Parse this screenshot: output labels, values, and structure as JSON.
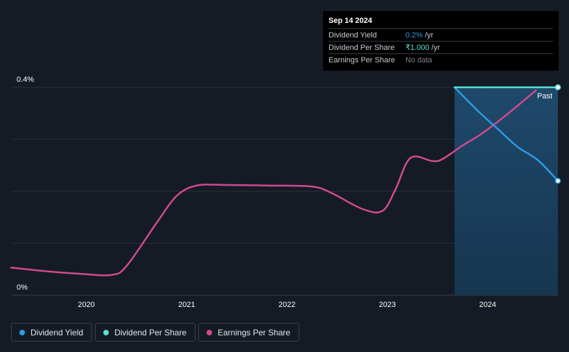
{
  "tooltip": {
    "date": "Sep 14 2024",
    "rows": [
      {
        "label": "Dividend Yield",
        "value": "0.2%",
        "suffix": "/yr",
        "color": "#2e9be6"
      },
      {
        "label": "Dividend Per Share",
        "value": "₹1.000",
        "suffix": "/yr",
        "color": "#58e0d2"
      },
      {
        "label": "Earnings Per Share",
        "value": "No data",
        "suffix": "",
        "color": "#7d828a"
      }
    ]
  },
  "past_label": "Past",
  "legend": [
    {
      "label": "Dividend Yield",
      "color": "#2e9be6"
    },
    {
      "label": "Dividend Per Share",
      "color": "#58e0d2"
    },
    {
      "label": "Earnings Per Share",
      "color": "#d14b8f"
    }
  ],
  "chart_data": {
    "type": "line",
    "y_tick_labels": [
      "0.4%",
      "0%"
    ],
    "x_tick_labels": [
      "2020",
      "2021",
      "2022",
      "2023",
      "2024"
    ],
    "xlim": [
      2019.25,
      2024.7
    ],
    "ylim": [
      0,
      0.4
    ],
    "grid": true,
    "forecast_region_start": 2023.67,
    "series": [
      {
        "name": "Dividend Yield",
        "color": "#2e9be6",
        "axis": "percent",
        "points": [
          [
            2023.67,
            0.4
          ],
          [
            2023.9,
            0.355
          ],
          [
            2024.1,
            0.32
          ],
          [
            2024.3,
            0.285
          ],
          [
            2024.5,
            0.26
          ],
          [
            2024.7,
            0.22
          ]
        ]
      },
      {
        "name": "Dividend Per Share",
        "color": "#58e0d2",
        "axis": "percent",
        "points": [
          [
            2023.67,
            0.4
          ],
          [
            2024.7,
            0.4
          ]
        ]
      },
      {
        "name": "Earnings Per Share",
        "color": "#d14b8f",
        "axis": "relative",
        "points": [
          [
            2019.25,
            0.053
          ],
          [
            2019.6,
            0.046
          ],
          [
            2019.95,
            0.041
          ],
          [
            2020.25,
            0.039
          ],
          [
            2020.4,
            0.056
          ],
          [
            2020.7,
            0.139
          ],
          [
            2020.9,
            0.191
          ],
          [
            2021.1,
            0.211
          ],
          [
            2021.4,
            0.212
          ],
          [
            2021.8,
            0.211
          ],
          [
            2022.25,
            0.209
          ],
          [
            2022.45,
            0.196
          ],
          [
            2022.75,
            0.166
          ],
          [
            2022.95,
            0.162
          ],
          [
            2023.08,
            0.203
          ],
          [
            2023.23,
            0.264
          ],
          [
            2023.45,
            0.258
          ],
          [
            2023.55,
            0.262
          ],
          [
            2023.75,
            0.288
          ],
          [
            2023.95,
            0.312
          ],
          [
            2024.2,
            0.349
          ],
          [
            2024.48,
            0.394
          ]
        ]
      }
    ]
  }
}
